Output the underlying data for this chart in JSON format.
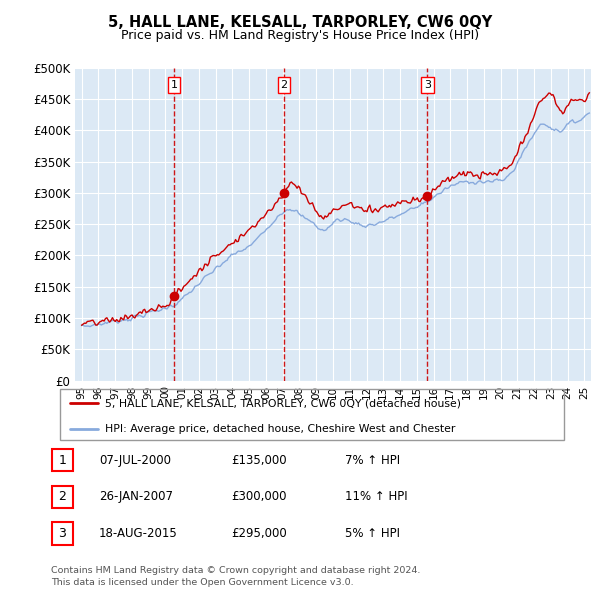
{
  "title": "5, HALL LANE, KELSALL, TARPORLEY, CW6 0QY",
  "subtitle": "Price paid vs. HM Land Registry's House Price Index (HPI)",
  "background_color": "#ffffff",
  "plot_bg_color": "#dce9f5",
  "grid_color": "#ffffff",
  "ylim": [
    0,
    500000
  ],
  "yticks": [
    0,
    50000,
    100000,
    150000,
    200000,
    250000,
    300000,
    350000,
    400000,
    450000,
    500000
  ],
  "ytick_labels": [
    "£0",
    "£50K",
    "£100K",
    "£150K",
    "£200K",
    "£250K",
    "£300K",
    "£350K",
    "£400K",
    "£450K",
    "£500K"
  ],
  "sales": [
    {
      "date_num": 2000.52,
      "price": 135000,
      "label": "1",
      "date_str": "07-JUL-2000",
      "pct": "7%"
    },
    {
      "date_num": 2007.07,
      "price": 300000,
      "label": "2",
      "date_str": "26-JAN-2007",
      "pct": "11%"
    },
    {
      "date_num": 2015.63,
      "price": 295000,
      "label": "3",
      "date_str": "18-AUG-2015",
      "pct": "5%"
    }
  ],
  "sale_color": "#cc0000",
  "hpi_color": "#88aadd",
  "legend_label_red": "5, HALL LANE, KELSALL, TARPORLEY, CW6 0QY (detached house)",
  "legend_label_blue": "HPI: Average price, detached house, Cheshire West and Chester",
  "footer": "Contains HM Land Registry data © Crown copyright and database right 2024.\nThis data is licensed under the Open Government Licence v3.0.",
  "xlim_start": 1994.6,
  "xlim_end": 2025.4
}
